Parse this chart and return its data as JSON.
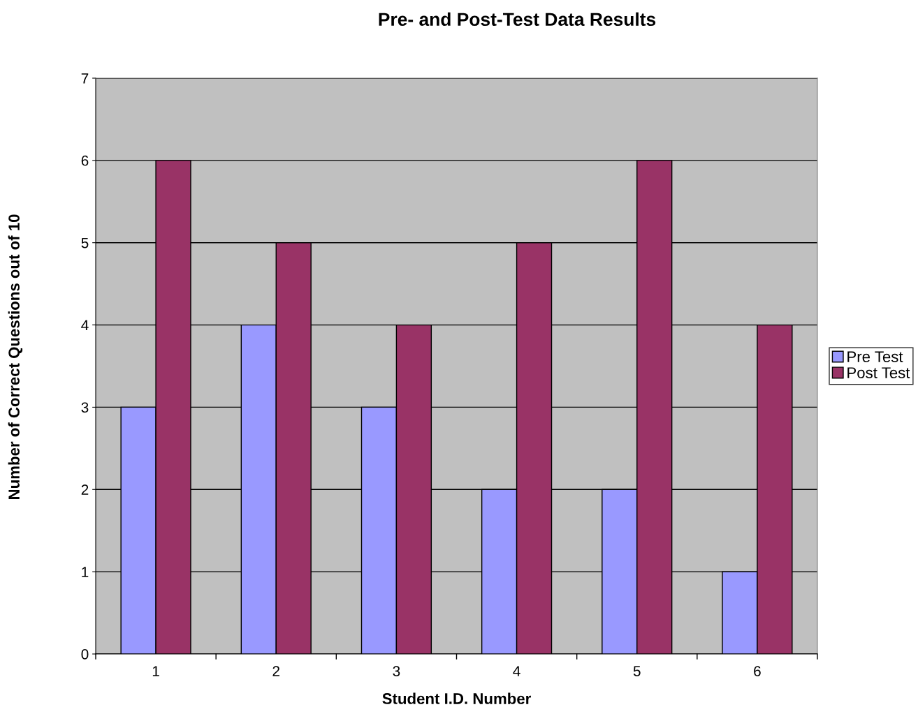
{
  "chart_data": {
    "type": "bar",
    "title": "Pre- and Post-Test Data Results",
    "xlabel": "Student I.D. Number",
    "ylabel": "Number of Correct Questions out of 10",
    "categories": [
      "1",
      "2",
      "3",
      "4",
      "5",
      "6"
    ],
    "series": [
      {
        "name": "Pre Test",
        "color": "#9999ff",
        "values": [
          3,
          4,
          3,
          2,
          2,
          1
        ]
      },
      {
        "name": "Post Test",
        "color": "#993366",
        "values": [
          6,
          5,
          4,
          5,
          6,
          4
        ]
      }
    ],
    "ylim": [
      0,
      7
    ],
    "yticks": [
      0,
      1,
      2,
      3,
      4,
      5,
      6,
      7
    ],
    "grid": "y",
    "legend": "right"
  }
}
